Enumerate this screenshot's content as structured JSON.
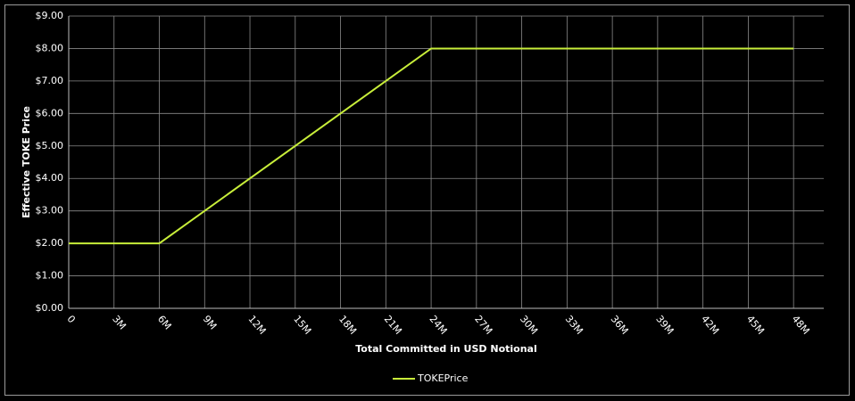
{
  "chart_data": {
    "type": "line",
    "x_label": "Total Committed in USD Notional",
    "y_label": "Effective  TOKE Price",
    "x": [
      0,
      6000000,
      24000000,
      48000000
    ],
    "series": [
      {
        "name": "TOKEPrice",
        "color": "#c8ee3a",
        "values": [
          2,
          2,
          8,
          8
        ]
      }
    ],
    "xlim": [
      0,
      50000000
    ],
    "xticks": [
      0,
      {
        "value": 3000000,
        "label": "3M"
      },
      {
        "value": 6000000,
        "label": "6M"
      },
      {
        "value": 9000000,
        "label": "9M"
      },
      {
        "value": 12000000,
        "label": "12M"
      },
      {
        "value": 15000000,
        "label": "15M"
      },
      {
        "value": 18000000,
        "label": "18M"
      },
      {
        "value": 21000000,
        "label": "21M"
      },
      {
        "value": 24000000,
        "label": "24M"
      },
      {
        "value": 27000000,
        "label": "27M"
      },
      {
        "value": 30000000,
        "label": "30M"
      },
      {
        "value": 33000000,
        "label": "33M"
      },
      {
        "value": 36000000,
        "label": "36M"
      },
      {
        "value": 39000000,
        "label": "39M"
      },
      {
        "value": 42000000,
        "label": "42M"
      },
      {
        "value": 45000000,
        "label": "45M"
      },
      {
        "value": 48000000,
        "label": "48M"
      }
    ],
    "ylim": [
      0,
      9
    ],
    "yticks": [
      {
        "value": 0,
        "label": "$0.00"
      },
      {
        "value": 1,
        "label": "$1.00"
      },
      {
        "value": 2,
        "label": "$2.00"
      },
      {
        "value": 3,
        "label": "$3.00"
      },
      {
        "value": 4,
        "label": "$4.00"
      },
      {
        "value": 5,
        "label": "$5.00"
      },
      {
        "value": 6,
        "label": "$6.00"
      },
      {
        "value": 7,
        "label": "$7.00"
      },
      {
        "value": 8,
        "label": "$8.00"
      },
      {
        "value": 9,
        "label": "$9.00"
      }
    ],
    "grid": true,
    "legend": "bottom"
  }
}
